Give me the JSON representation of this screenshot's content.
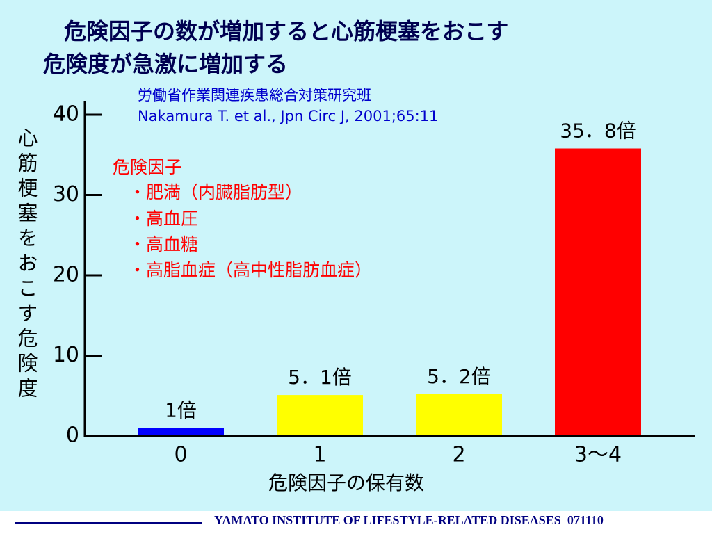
{
  "chart_data": {
    "type": "bar",
    "title": [
      "危険因子の数が増加すると心筋梗塞をおこす",
      "危険度が急激に増加する"
    ],
    "subtitle": [
      "労働省作業関連疾患総合対策研究班",
      "Nakamura T. et al., Jpn Circ J, 2001;65:11"
    ],
    "annotation": [
      "危険因子",
      "・肥満（内臓脂肪型）",
      "・高血圧",
      "・高血糖",
      "・高脂血症（高中性脂肪血症）"
    ],
    "y_label": "心筋梗塞をおこす危険度",
    "x_label": "危険因子の保有数",
    "categories": [
      "0",
      "1",
      "2",
      "3～4"
    ],
    "values": [
      1,
      5.1,
      5.2,
      35.8
    ],
    "value_labels": [
      "1倍",
      "5．1倍",
      "5．2倍",
      "35．8倍"
    ],
    "colors": [
      "#0000ff",
      "#ffff00",
      "#ffff00",
      "#ff0000"
    ],
    "ylim": [
      0,
      40
    ],
    "yticks": [
      0,
      10,
      20,
      30,
      40
    ]
  },
  "footer": "YAMATO INSTITUTE OF LIFESTYLE-RELATED DISEASES  071110"
}
